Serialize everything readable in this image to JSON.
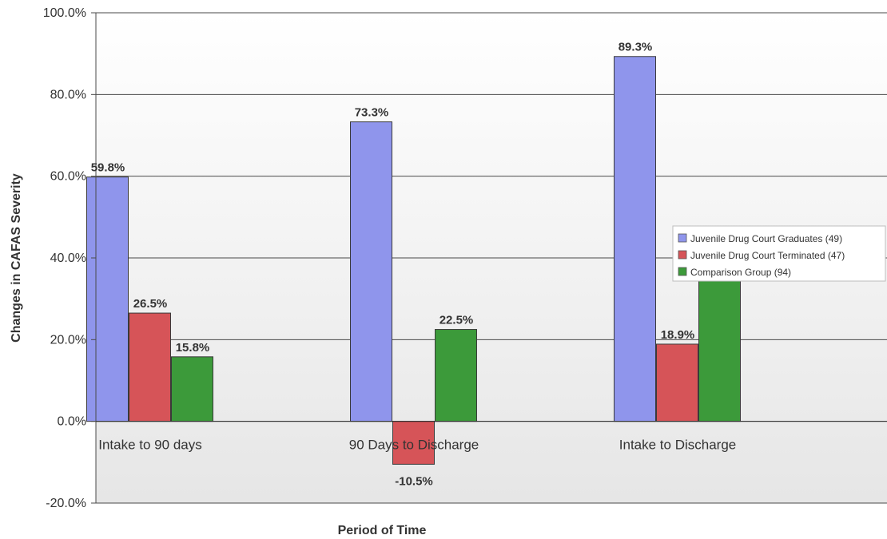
{
  "chart_data": {
    "type": "bar",
    "title": "",
    "xlabel": "Period of Time",
    "ylabel": "Changes in CAFAS Severity",
    "categories": [
      "Intake to 90 days",
      "90 Days to Discharge",
      "Intake to Discharge"
    ],
    "series": [
      {
        "name": "Juvenile Drug Court Graduates (49)",
        "values": [
          59.8,
          73.3,
          89.3
        ],
        "labels": [
          "59.8%",
          "73.3%",
          "89.3%"
        ],
        "color": "#8F95EC"
      },
      {
        "name": "Juvenile Drug Court Terminated (47)",
        "values": [
          26.5,
          -10.5,
          18.9
        ],
        "labels": [
          "26.5%",
          "-10.5%",
          "18.9%"
        ],
        "color": "#D65458"
      },
      {
        "name": "Comparison Group (94)",
        "values": [
          15.8,
          22.5,
          34.7
        ],
        "labels": [
          "15.8%",
          "22.5%",
          "34.7%"
        ],
        "color": "#3C9A3A"
      }
    ],
    "ylim": [
      -20,
      100
    ],
    "yticks": [
      100,
      80,
      60,
      40,
      20,
      0,
      -20
    ],
    "ytick_labels": [
      "100.0%",
      "80.0%",
      "60.0%",
      "40.0%",
      "20.0%",
      "0.0%",
      "-20.0%"
    ],
    "grid": true,
    "legend_position": "right",
    "plot_background": "#EDEDED"
  }
}
